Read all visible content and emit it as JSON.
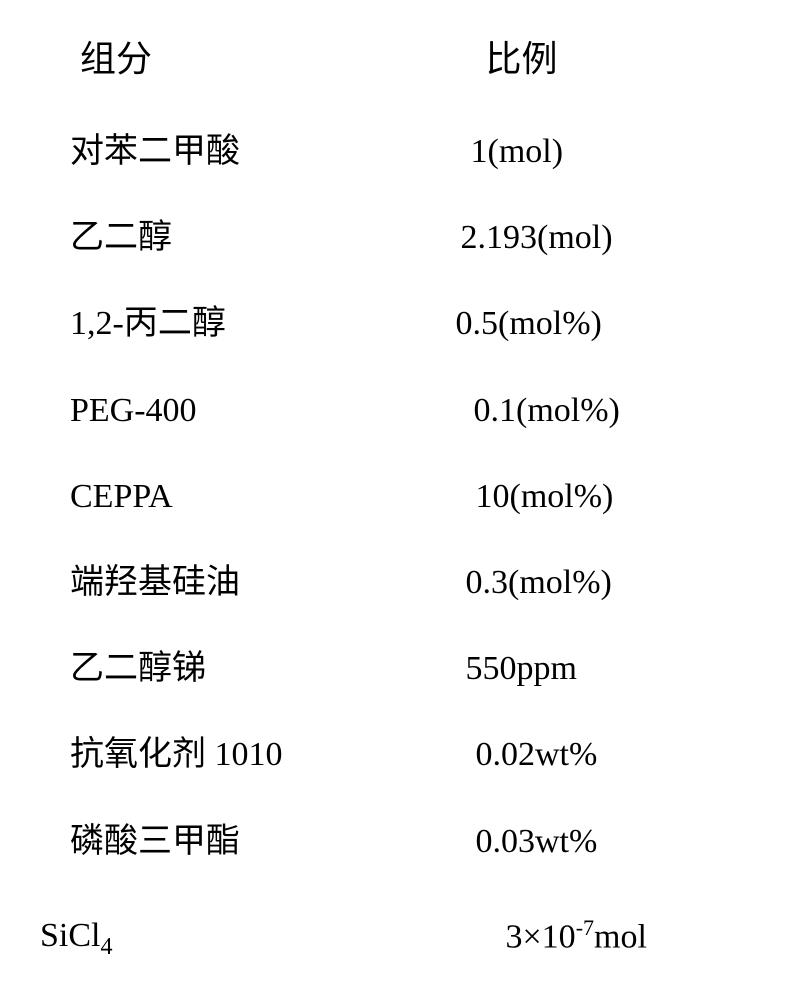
{
  "table": {
    "headers": {
      "component": "组分",
      "ratio": "比例"
    },
    "rows": [
      {
        "component": "对苯二甲酸",
        "ratio": "1(mol)",
        "indent_right": 75
      },
      {
        "component": "乙二醇",
        "ratio": "2.193(mol)",
        "indent_right": 65
      },
      {
        "component": "1,2-丙二醇",
        "ratio": "0.5(mol%)",
        "indent_right": 60
      },
      {
        "component": "PEG-400",
        "ratio": "0.1(mol%)",
        "indent_right": 78
      },
      {
        "component": "CEPPA",
        "ratio": "10(mol%)",
        "indent_right": 80
      },
      {
        "component": "端羟基硅油",
        "ratio": "0.3(mol%)",
        "indent_right": 70
      },
      {
        "component": "乙二醇锑",
        "ratio": "550ppm",
        "indent_right": 70
      },
      {
        "component": "抗氧化剂 1010",
        "ratio": "0.02wt%",
        "indent_right": 80
      },
      {
        "component": "磷酸三甲酯",
        "ratio": "0.03wt%",
        "indent_right": 80
      }
    ],
    "last_row": {
      "component_prefix": "SiCl",
      "component_sub": "4",
      "ratio_prefix": "3×10",
      "ratio_sup": "-7",
      "ratio_suffix": "mol"
    }
  },
  "styling": {
    "background_color": "#ffffff",
    "text_color": "#000000",
    "header_fontsize": 36,
    "cell_fontsize": 34,
    "font_family": "SimSun"
  }
}
